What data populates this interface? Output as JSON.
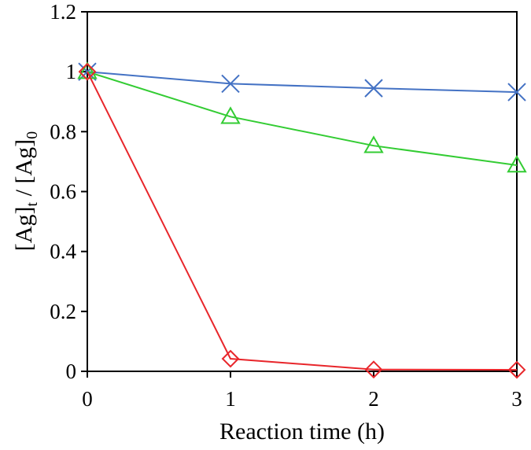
{
  "chart_data": {
    "type": "line",
    "title": "",
    "xlabel": "Reaction time (h)",
    "ylabel": {
      "part1": "[Ag]",
      "sub1": "t",
      "sep": " / ",
      "part2": "[Ag]",
      "sub2": "0"
    },
    "xlim": [
      0,
      3
    ],
    "ylim": [
      0,
      1.2
    ],
    "x_ticks": [
      "0",
      "1",
      "2",
      "3"
    ],
    "y_ticks": [
      "0",
      "0.2",
      "0.4",
      "0.6",
      "0.8",
      "1",
      "1.2"
    ],
    "grid": false,
    "legend": "none",
    "x": [
      0,
      1,
      2,
      3
    ],
    "series": [
      {
        "marker": "x-cross",
        "color": "#4472C4",
        "values": [
          1.0,
          0.96,
          0.945,
          0.932
        ]
      },
      {
        "marker": "triangle",
        "color": "#33CC33",
        "values": [
          1.0,
          0.85,
          0.753,
          0.688
        ]
      },
      {
        "marker": "diamond",
        "color": "#E8262B",
        "values": [
          1.0,
          0.042,
          0.006,
          0.005
        ]
      }
    ]
  }
}
